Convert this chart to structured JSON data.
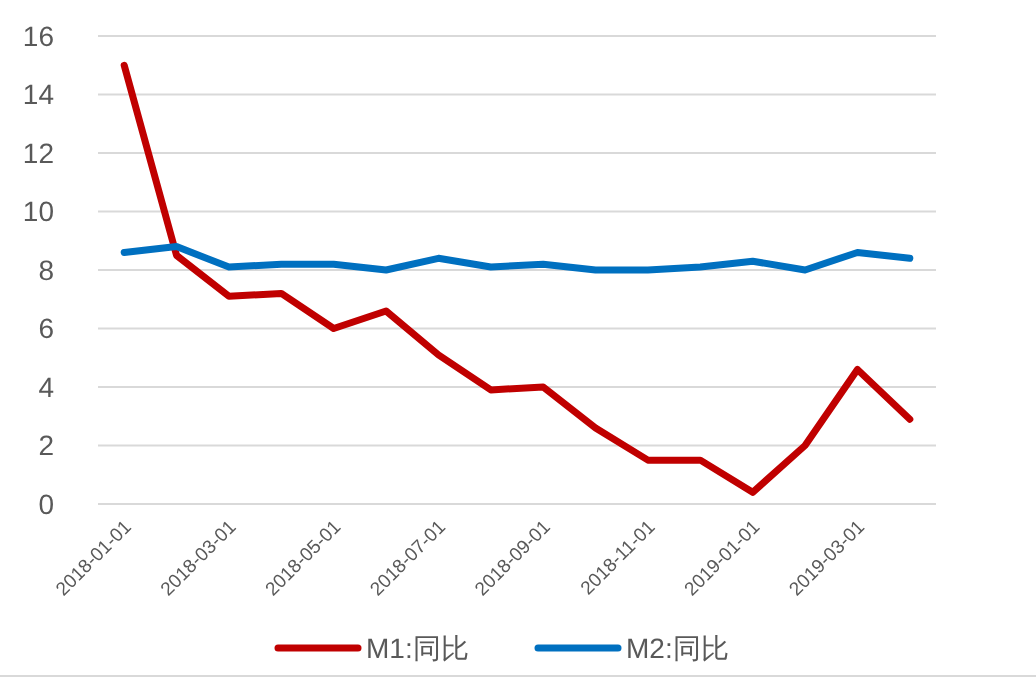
{
  "chart_data": {
    "type": "line",
    "categories": [
      "2018-01-01",
      null,
      "2018-03-01",
      null,
      "2018-05-01",
      null,
      "2018-07-01",
      null,
      "2018-09-01",
      null,
      "2018-11-01",
      null,
      "2019-01-01",
      null,
      "2019-03-01",
      null
    ],
    "series": [
      {
        "name": "M1:同比",
        "color": "#c00000",
        "values": [
          15.0,
          8.5,
          7.1,
          7.2,
          6.0,
          6.6,
          5.1,
          3.9,
          4.0,
          2.6,
          1.5,
          1.5,
          0.4,
          2.0,
          4.6,
          2.9
        ]
      },
      {
        "name": "M2:同比",
        "color": "#0070c0",
        "values": [
          8.6,
          8.8,
          8.1,
          8.2,
          8.2,
          8.0,
          8.4,
          8.1,
          8.2,
          8.0,
          8.0,
          8.1,
          8.3,
          8.0,
          8.6,
          8.4
        ]
      }
    ],
    "ylim": [
      0,
      16
    ],
    "yticks": [
      0,
      2,
      4,
      6,
      8,
      10,
      12,
      14,
      16
    ],
    "grid": "y",
    "legend": "bottom",
    "marker": "none",
    "line_style": "solid"
  }
}
